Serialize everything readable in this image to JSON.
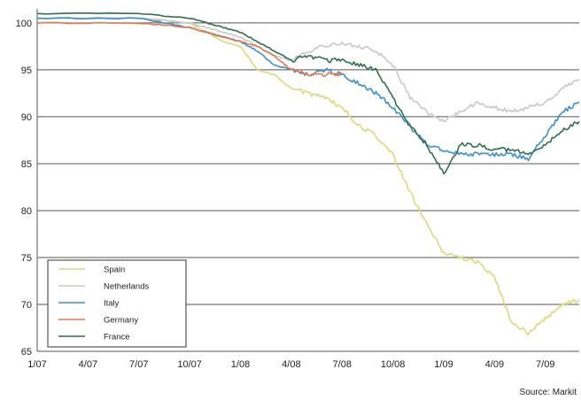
{
  "chart_data": {
    "type": "line",
    "title": "",
    "xlabel": "",
    "ylabel": "",
    "source": "Source: Markit",
    "x_ticks": [
      "1/07",
      "4/07",
      "7/07",
      "10/07",
      "1/08",
      "4/08",
      "7/08",
      "10/08",
      "1/09",
      "4/09",
      "7/09"
    ],
    "y_ticks": [
      65,
      70,
      75,
      80,
      85,
      90,
      95,
      100
    ],
    "xlim": [
      "2007-01",
      "2009-09"
    ],
    "ylim": [
      65,
      101.5
    ],
    "grid": "horizontal",
    "legend_position": "bottom-left",
    "series": [
      {
        "name": "Spain",
        "color": "#d9d97a",
        "x": [
          "2007-01",
          "2007-07",
          "2007-10",
          "2007-11",
          "2007-12",
          "2008-01",
          "2008-02",
          "2008-03",
          "2008-04",
          "2008-05",
          "2008-06",
          "2008-07",
          "2008-08",
          "2008-09",
          "2008-10",
          "2008-11",
          "2008-12",
          "2009-01",
          "2009-02",
          "2009-03",
          "2009-04",
          "2009-05",
          "2009-06",
          "2009-07",
          "2009-08",
          "2009-09"
        ],
        "values": [
          100.5,
          100.5,
          100.0,
          99.0,
          98.0,
          97.5,
          95.0,
          94.5,
          93.0,
          92.5,
          92.0,
          91.0,
          89.0,
          88.0,
          86.0,
          82.0,
          78.5,
          75.5,
          75.0,
          74.5,
          73.0,
          68.0,
          67.0,
          68.5,
          70.0,
          70.5
        ]
      },
      {
        "name": "Netherlands",
        "color": "#c8c8c8",
        "x": [
          "2007-01",
          "2007-07",
          "2007-10",
          "2007-11",
          "2007-12",
          "2008-01",
          "2008-02",
          "2008-03",
          "2008-04",
          "2008-05",
          "2008-06",
          "2008-07",
          "2008-08",
          "2008-09",
          "2008-10",
          "2008-11",
          "2008-12",
          "2009-01",
          "2009-02",
          "2009-03",
          "2009-04",
          "2009-05",
          "2009-06",
          "2009-07",
          "2009-08",
          "2009-09"
        ],
        "values": [
          100.5,
          100.5,
          100.0,
          99.5,
          99.0,
          98.5,
          97.5,
          96.5,
          96.0,
          97.0,
          97.5,
          97.8,
          97.5,
          97.0,
          95.5,
          92.0,
          90.5,
          89.5,
          90.5,
          91.5,
          91.0,
          90.5,
          91.0,
          91.5,
          93.0,
          94.0
        ]
      },
      {
        "name": "Italy",
        "color": "#3b8fd6",
        "x": [
          "2007-01",
          "2007-07",
          "2007-10",
          "2007-11",
          "2007-12",
          "2008-01",
          "2008-02",
          "2008-03",
          "2008-04",
          "2008-05",
          "2008-06",
          "2008-07",
          "2008-08",
          "2008-09",
          "2008-10",
          "2008-11",
          "2008-12",
          "2009-01",
          "2009-02",
          "2009-03",
          "2009-04",
          "2009-05",
          "2009-06",
          "2009-07",
          "2009-08",
          "2009-09"
        ],
        "values": [
          100.5,
          100.5,
          99.5,
          99.0,
          98.5,
          98.0,
          97.0,
          95.5,
          95.0,
          94.5,
          95.0,
          94.5,
          93.5,
          92.5,
          91.0,
          89.0,
          87.0,
          86.5,
          86.0,
          86.0,
          86.0,
          86.0,
          85.5,
          88.0,
          90.5,
          91.5
        ]
      },
      {
        "name": "Germany",
        "color": "#e8784a",
        "x": [
          "2007-01",
          "2007-07",
          "2007-10",
          "2007-11",
          "2007-12",
          "2008-01",
          "2008-02",
          "2008-03",
          "2008-04",
          "2008-05",
          "2008-06",
          "2008-07"
        ],
        "values": [
          100.0,
          100.0,
          99.5,
          99.0,
          98.5,
          98.0,
          97.5,
          96.5,
          95.0,
          94.5,
          94.5,
          94.5
        ]
      },
      {
        "name": "France",
        "color": "#2f6f4e",
        "x": [
          "2007-01",
          "2007-07",
          "2007-10",
          "2007-11",
          "2007-12",
          "2008-01",
          "2008-02",
          "2008-03",
          "2008-04",
          "2008-05",
          "2008-06",
          "2008-07",
          "2008-08",
          "2008-09",
          "2008-10",
          "2008-11",
          "2008-12",
          "2009-01",
          "2009-02",
          "2009-03",
          "2009-04",
          "2009-05",
          "2009-06",
          "2009-07",
          "2009-08",
          "2009-09"
        ],
        "values": [
          101.0,
          101.0,
          100.5,
          100.0,
          99.5,
          99.0,
          98.0,
          97.0,
          96.0,
          96.5,
          96.0,
          96.0,
          95.5,
          95.0,
          92.0,
          89.0,
          87.0,
          84.0,
          87.0,
          87.0,
          86.5,
          86.5,
          86.0,
          87.0,
          88.5,
          89.5
        ]
      }
    ]
  }
}
